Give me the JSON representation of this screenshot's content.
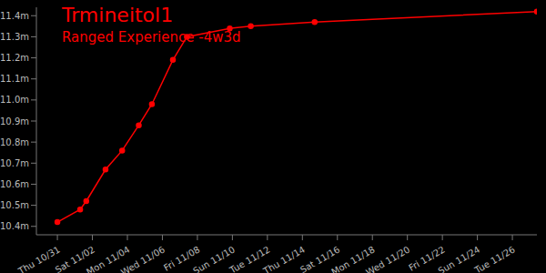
{
  "chart_data": {
    "type": "line",
    "title": "Trmineitol1",
    "subtitle": "Ranged Experience -4w3d",
    "color": "#ff0000",
    "marker": "circle",
    "grid": false,
    "x": [
      0.0,
      1.3,
      1.65,
      2.75,
      3.7,
      4.65,
      5.4,
      6.6,
      7.4,
      9.85,
      11.05,
      14.7,
      27.4
    ],
    "values": [
      10.42,
      10.48,
      10.52,
      10.67,
      10.76,
      10.88,
      10.98,
      11.19,
      11.3,
      11.34,
      11.35,
      11.37,
      11.42
    ],
    "xlim": [
      -1.2,
      27.4
    ],
    "xticks": [
      {
        "value": 0,
        "label": "Thu 10/31"
      },
      {
        "value": 2,
        "label": "Sat 11/02"
      },
      {
        "value": 4,
        "label": "Mon 11/04"
      },
      {
        "value": 6,
        "label": "Wed 11/06"
      },
      {
        "value": 8,
        "label": "Fri 11/08"
      },
      {
        "value": 10,
        "label": "Sun 11/10"
      },
      {
        "value": 12,
        "label": "Tue 11/12"
      },
      {
        "value": 14,
        "label": "Thu 11/14"
      },
      {
        "value": 16,
        "label": "Sat 11/16"
      },
      {
        "value": 18,
        "label": "Mon 11/18"
      },
      {
        "value": 20,
        "label": "Wed 11/20"
      },
      {
        "value": 22,
        "label": "Fri 11/22"
      },
      {
        "value": 24,
        "label": "Sun 11/24"
      },
      {
        "value": 26,
        "label": "Tue 11/26"
      }
    ],
    "ylim": [
      10.36,
      11.44
    ],
    "yticks": [
      {
        "value": 10.4,
        "label": "10.4m"
      },
      {
        "value": 10.5,
        "label": "10.5m"
      },
      {
        "value": 10.6,
        "label": "10.6m"
      },
      {
        "value": 10.7,
        "label": "10.7m"
      },
      {
        "value": 10.8,
        "label": "10.8m"
      },
      {
        "value": 10.9,
        "label": "10.9m"
      },
      {
        "value": 11.0,
        "label": "11.0m"
      },
      {
        "value": 11.1,
        "label": "11.1m"
      },
      {
        "value": 11.2,
        "label": "11.2m"
      },
      {
        "value": 11.3,
        "label": "11.3m"
      },
      {
        "value": 11.4,
        "label": "11.4m"
      }
    ]
  }
}
